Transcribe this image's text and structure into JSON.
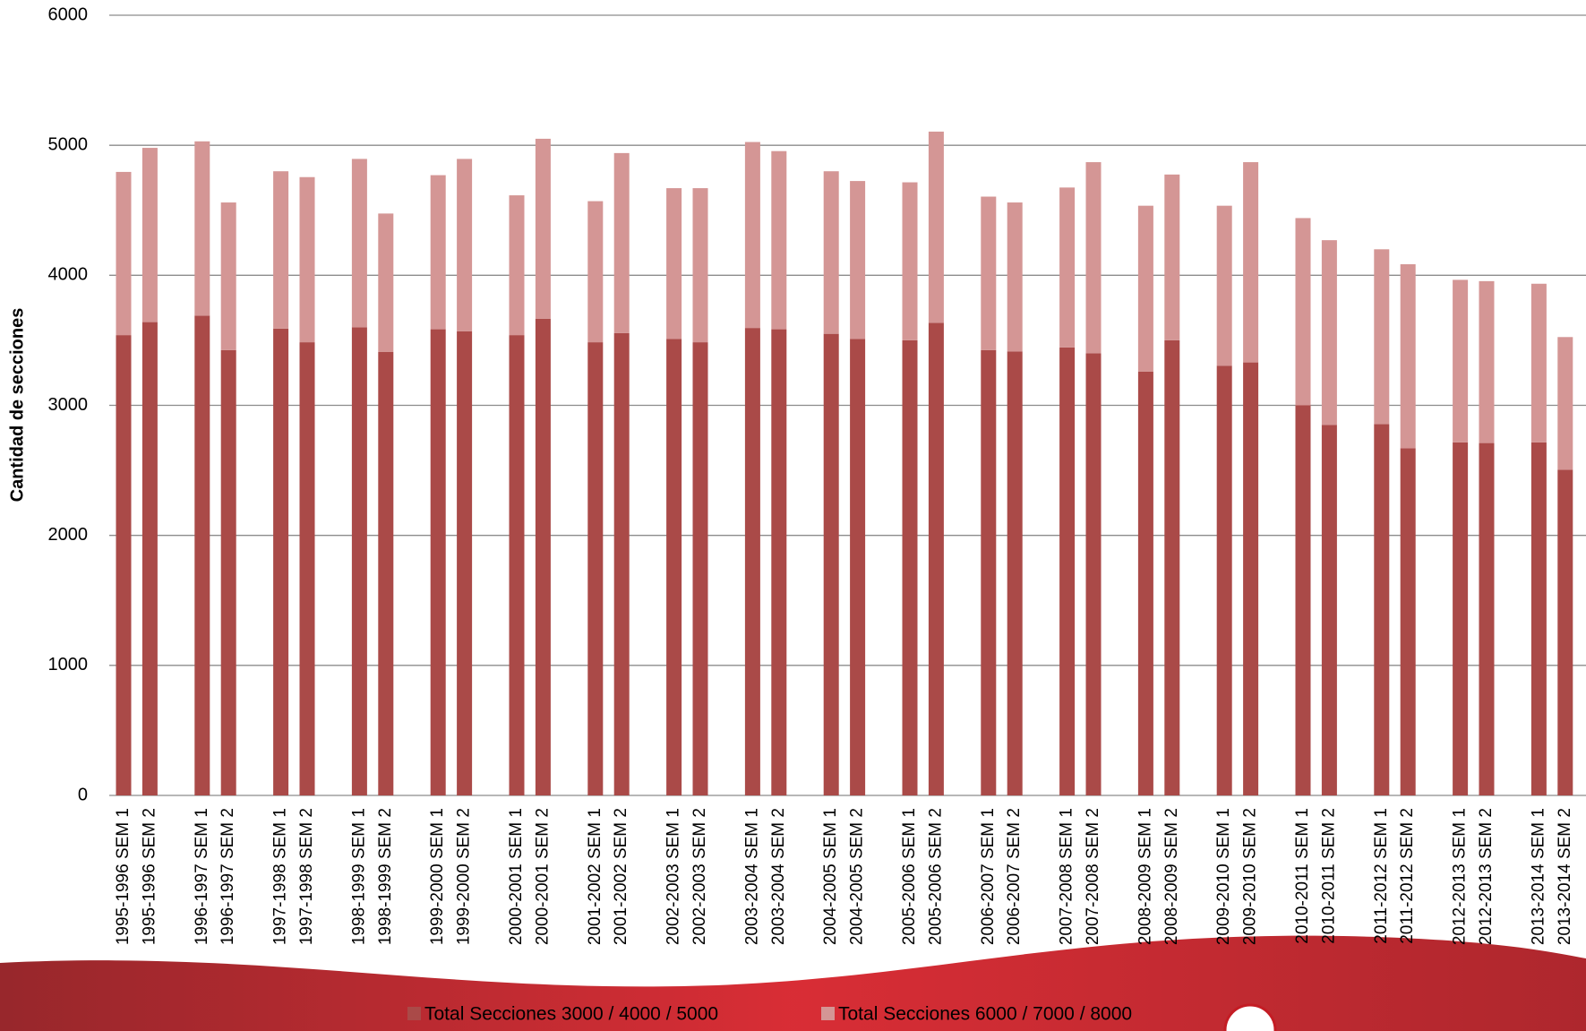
{
  "chart_data": {
    "type": "stacked-bar",
    "y_label": "Cantidad de secciones",
    "categories": [
      "1995-1996 SEM 1",
      "1995-1996 SEM 2",
      "1996-1997 SEM 1",
      "1996-1997 SEM 2",
      "1997-1998 SEM 1",
      "1997-1998 SEM 2",
      "1998-1999 SEM 1",
      "1998-1999 SEM 2",
      "1999-2000 SEM 1",
      "1999-2000 SEM 2",
      "2000-2001 SEM 1",
      "2000-2001 SEM 2",
      "2001-2002 SEM 1",
      "2001-2002 SEM 2",
      "2002-2003 SEM 1",
      "2002-2003 SEM 2",
      "2003-2004 SEM 1",
      "2003-2004 SEM 2",
      "2004-2005 SEM 1",
      "2004-2005 SEM 2",
      "2005-2006 SEM 1",
      "2005-2006 SEM 2",
      "2006-2007 SEM 1",
      "2006-2007 SEM 2",
      "2007-2008 SEM 1",
      "2007-2008 SEM 2",
      "2008-2009 SEM 1",
      "2008-2009 SEM 2",
      "2009-2010 SEM 1",
      "2009-2010 SEM 2",
      "2010-2011 SEM 1",
      "2010-2011 SEM 2",
      "2011-2012 SEM 1",
      "2011-2012 SEM 2",
      "2012-2013 SEM 1",
      "2012-2013 SEM 2",
      "2013-2014 SEM 1",
      "2013-2014 SEM 2"
    ],
    "series": [
      {
        "name": "Total Secciones 3000 / 4000 / 5000",
        "color": "#aa4a48",
        "values": [
          3540,
          3640,
          3690,
          3425,
          3590,
          3485,
          3600,
          3410,
          3585,
          3570,
          3540,
          3665,
          3485,
          3555,
          3510,
          3485,
          3595,
          3585,
          3550,
          3510,
          3500,
          3635,
          3425,
          3415,
          3445,
          3400,
          3260,
          3500,
          3305,
          3330,
          3000,
          2850,
          2855,
          2670,
          2715,
          2710,
          2715,
          2505
        ]
      },
      {
        "name": "Total Secciones 6000 / 7000 / 8000",
        "color": "#d49695",
        "values": [
          1255,
          1340,
          1340,
          1135,
          1210,
          1270,
          1295,
          1065,
          1185,
          1325,
          1075,
          1385,
          1085,
          1385,
          1160,
          1185,
          1430,
          1370,
          1250,
          1215,
          1215,
          1470,
          1180,
          1145,
          1230,
          1470,
          1275,
          1275,
          1230,
          1540,
          1440,
          1420,
          1345,
          1415,
          1250,
          1245,
          1220,
          1020
        ]
      }
    ],
    "ylim": [
      0,
      6000
    ],
    "yticks": [
      0,
      1000,
      2000,
      3000,
      4000,
      5000,
      6000
    ],
    "grid": true
  }
}
